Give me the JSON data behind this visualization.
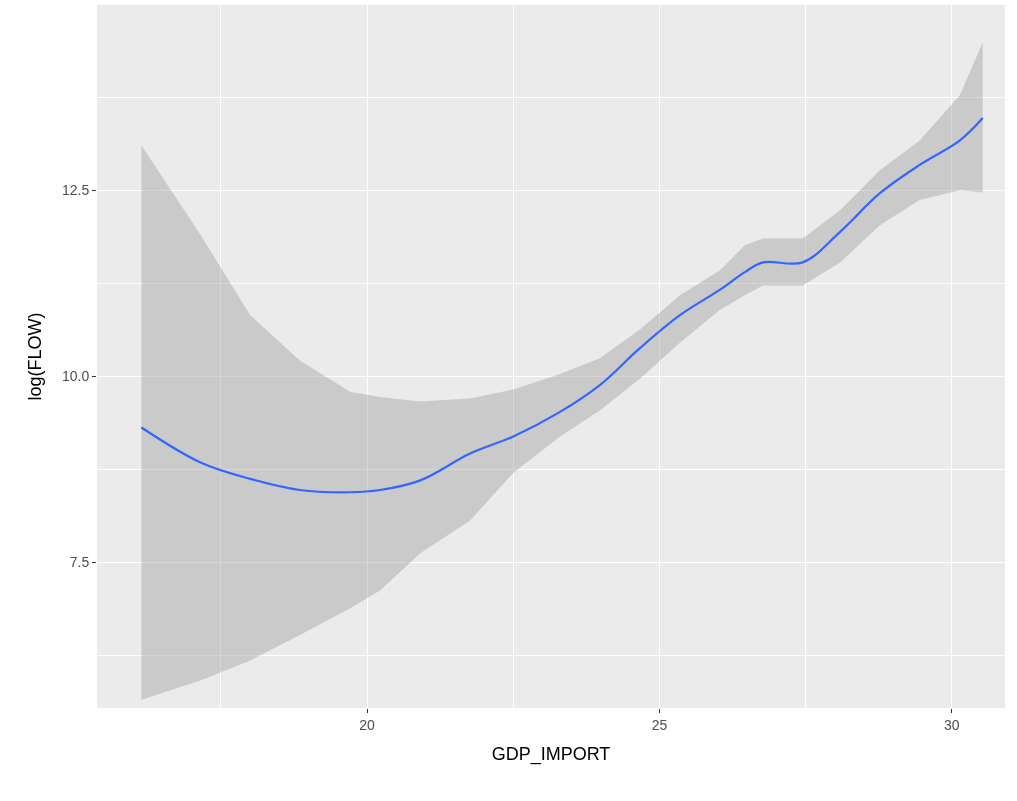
{
  "chart_data": {
    "type": "line",
    "xlabel": "GDP_IMPORT",
    "ylabel": "log(FLOW)",
    "xlim": [
      15.38,
      30.91
    ],
    "xticks": [
      20,
      25,
      30
    ],
    "ylim": [
      5.54,
      14.99
    ],
    "yticks": [
      {
        "value": 7.5,
        "label": "7.5"
      },
      {
        "value": 10,
        "label": "10.0"
      },
      {
        "value": 12.5,
        "label": "12.5"
      }
    ],
    "grid": true,
    "marker": "none",
    "line_style": "solid",
    "series": [
      {
        "color": "#3366ff",
        "x": [
          16.14,
          17.15,
          18.0,
          18.85,
          19.71,
          20.22,
          20.91,
          21.76,
          22.5,
          23.3,
          23.98,
          24.67,
          25.35,
          26.03,
          26.46,
          26.77,
          27.45,
          28.09,
          28.77,
          29.45,
          30.14,
          30.53
        ],
        "values": [
          9.31,
          8.84,
          8.62,
          8.47,
          8.44,
          8.47,
          8.6,
          8.96,
          9.19,
          9.52,
          9.88,
          10.38,
          10.82,
          11.16,
          11.4,
          11.53,
          11.53,
          11.94,
          12.46,
          12.84,
          13.17,
          13.47
        ],
        "lower": [
          5.65,
          5.91,
          6.18,
          6.52,
          6.88,
          7.12,
          7.62,
          8.06,
          8.7,
          9.19,
          9.54,
          9.97,
          10.45,
          10.89,
          11.09,
          11.22,
          11.22,
          11.53,
          12.03,
          12.37,
          12.5,
          12.47
        ],
        "upper": [
          13.1,
          11.9,
          10.82,
          10.21,
          9.79,
          9.72,
          9.66,
          9.7,
          9.82,
          10.03,
          10.24,
          10.63,
          11.09,
          11.42,
          11.76,
          11.85,
          11.85,
          12.23,
          12.77,
          13.17,
          13.78,
          14.49
        ]
      }
    ]
  }
}
